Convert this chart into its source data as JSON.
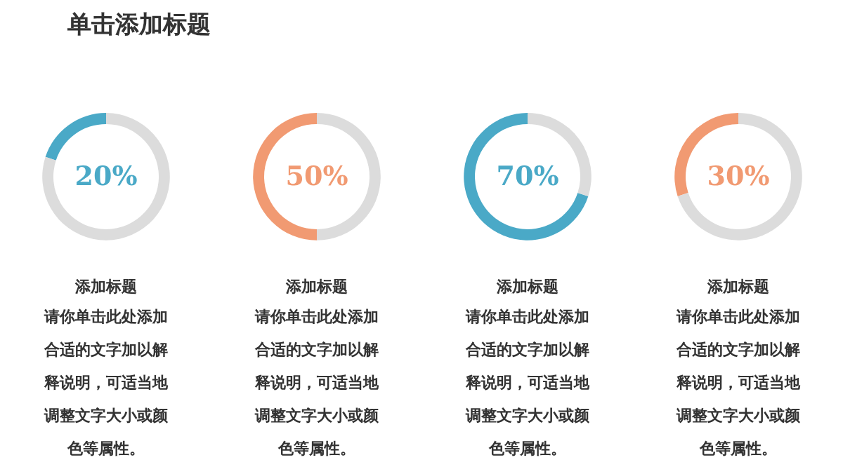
{
  "chart_data": [
    {
      "type": "donut",
      "title": "单击添加标题",
      "subtitle": "添加标题",
      "categories": [
        null,
        null
      ],
      "values": [
        20,
        80
      ],
      "colors": [
        "#4aa9c7",
        "#dcdcdc"
      ],
      "annotations": [
        "20%",
        "请你单击此处添加合适的文字加以解释说明，可适当地调整文字大小或颜色等属性。"
      ]
    },
    {
      "type": "donut",
      "subtitle": "添加标题",
      "categories": [
        null,
        null
      ],
      "values": [
        50,
        50
      ],
      "colors": [
        "#f19a72",
        "#dcdcdc"
      ],
      "annotations": [
        "50%",
        "请你单击此处添加合适的文字加以解释说明，可适当地调整文字大小或颜色等属性。"
      ]
    },
    {
      "type": "donut",
      "subtitle": "添加标题",
      "categories": [
        null,
        null
      ],
      "values": [
        70,
        30
      ],
      "colors": [
        "#4aa9c7",
        "#dcdcdc"
      ],
      "annotations": [
        "70%",
        "请你单击此处添加合适的文字加以解释说明，可适当地调整文字大小或颜色等属性。"
      ]
    },
    {
      "type": "donut",
      "subtitle": "添加标题",
      "categories": [
        null,
        null
      ],
      "values": [
        30,
        70
      ],
      "colors": [
        "#f19a72",
        "#dcdcdc"
      ],
      "annotations": [
        "30%",
        "请你单击此处添加合适的文字加以解释说明，可适当地调整文字大小或颜色等属性。"
      ]
    }
  ]
}
